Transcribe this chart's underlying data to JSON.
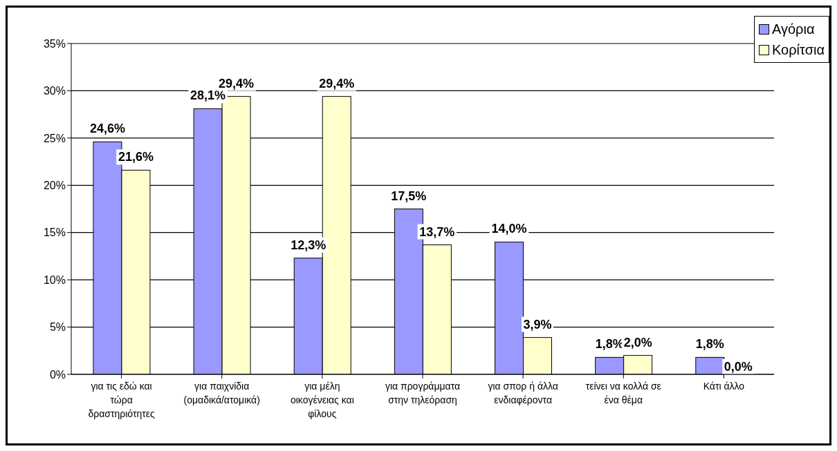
{
  "chart_data": {
    "type": "bar",
    "categories": [
      "για τις εδώ και τώρα δραστηριότητες",
      "για παιχνίδια (ομαδικά/ατομικά)",
      "για μέλη οικογένειας και φίλους",
      "για προγράμματα στην τηλεόραση",
      "για σπορ ή άλλα ενδιαφέροντα",
      "τείνει να κολλά σε ένα θέμα",
      "Κάτι άλλο"
    ],
    "series": [
      {
        "name": "Αγόρια",
        "color": "#9999ff",
        "values": [
          24.6,
          28.1,
          12.3,
          17.5,
          14.0,
          1.8,
          1.8
        ],
        "value_labels": [
          "24,6%",
          "28,1%",
          "12,3%",
          "17,5%",
          "14,0%",
          "1,8%",
          "1,8%"
        ]
      },
      {
        "name": "Κορίτσια",
        "color": "#ffffcc",
        "values": [
          21.6,
          29.4,
          29.4,
          13.7,
          3.9,
          2.0,
          0.0
        ],
        "value_labels": [
          "21,6%",
          "29,4%",
          "29,4%",
          "13,7%",
          "3,9%",
          "2,0%",
          "0,0%"
        ]
      }
    ],
    "ylim": [
      0,
      35
    ],
    "yticks": [
      {
        "value": 0,
        "label": "0%"
      },
      {
        "value": 5,
        "label": "5%"
      },
      {
        "value": 10,
        "label": "10%"
      },
      {
        "value": 15,
        "label": "15%"
      },
      {
        "value": 20,
        "label": "20%"
      },
      {
        "value": 25,
        "label": "25%"
      },
      {
        "value": 30,
        "label": "30%"
      },
      {
        "value": 35,
        "label": "35%"
      }
    ],
    "grid": "y",
    "legend": "top right"
  }
}
